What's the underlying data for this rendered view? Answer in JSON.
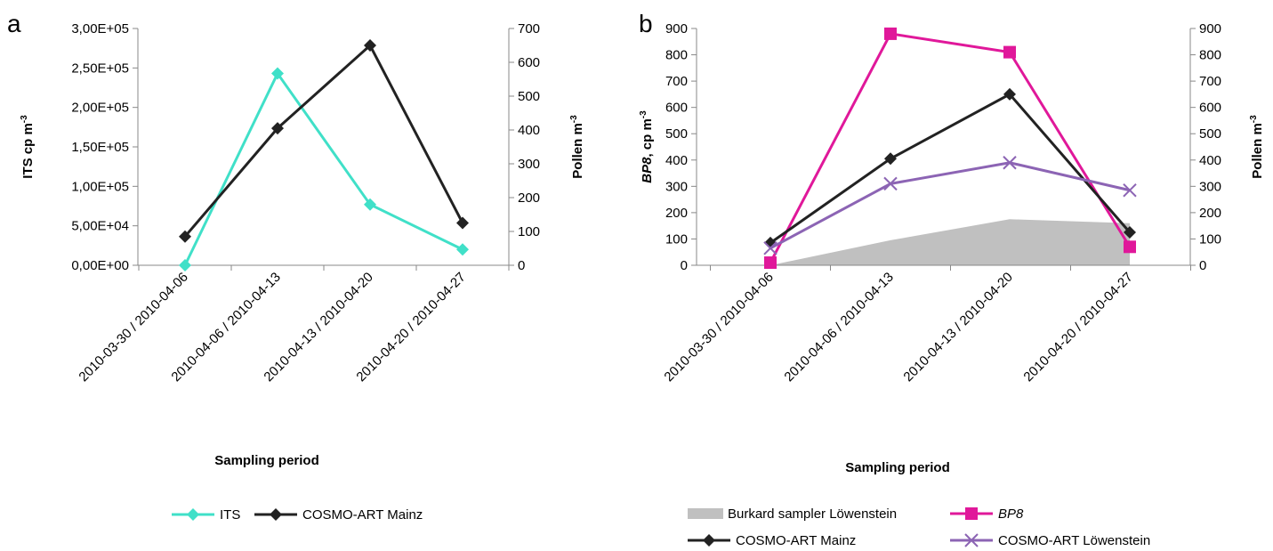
{
  "chart_data": [
    {
      "panel": "a",
      "type": "line",
      "categories": [
        "2010-03-30 / 2010-04-06",
        "2010-04-06 / 2010-04-13",
        "2010-04-13 / 2010-04-20",
        "2010-04-20 / 2010-04-27"
      ],
      "xlabel": "Sampling period",
      "ylabel": "ITS cp m",
      "ylabel_sup": "-3",
      "y2label": "Pollen m",
      "y2label_sup": "-3",
      "ylim": [
        0,
        300000
      ],
      "yticks": [
        "0,00E+00",
        "5,00E+04",
        "1,00E+05",
        "1,50E+05",
        "2,00E+05",
        "2,50E+05",
        "3,00E+05"
      ],
      "y2lim": [
        0,
        700
      ],
      "y2ticks": [
        "0",
        "100",
        "200",
        "300",
        "400",
        "500",
        "600",
        "700"
      ],
      "legend_position": "bottom",
      "series": [
        {
          "name": "ITS",
          "axis": "left",
          "color": "#40e0c8",
          "marker": "diamond",
          "values": [
            0,
            243000,
            77000,
            20000
          ]
        },
        {
          "name": "COSMO-ART Mainz",
          "axis": "right",
          "color": "#222222",
          "marker": "diamond",
          "values": [
            85,
            405,
            650,
            125
          ]
        }
      ]
    },
    {
      "panel": "b",
      "type": "line",
      "categories": [
        "2010-03-30 / 2010-04-06",
        "2010-04-06 / 2010-04-13",
        "2010-04-13 / 2010-04-20",
        "2010-04-20 / 2010-04-27"
      ],
      "xlabel": "Sampling period",
      "ylabel_italic": "BP8",
      "ylabel": ", cp m",
      "ylabel_sup": "-3",
      "y2label": "Pollen m",
      "y2label_sup": "-3",
      "ylim": [
        0,
        900
      ],
      "yticks": [
        "0",
        "100",
        "200",
        "300",
        "400",
        "500",
        "600",
        "700",
        "800",
        "900"
      ],
      "y2lim": [
        0,
        900
      ],
      "y2ticks": [
        "0",
        "100",
        "200",
        "300",
        "400",
        "500",
        "600",
        "700",
        "800",
        "900"
      ],
      "legend_position": "bottom",
      "area": {
        "name": "Burkard sampler Löwenstein",
        "axis": "right",
        "color": "#c0c0c0",
        "values": [
          0,
          95,
          175,
          160
        ]
      },
      "series": [
        {
          "name": "BP8",
          "italic": true,
          "axis": "left",
          "color": "#e0189a",
          "marker": "square",
          "values": [
            10,
            880,
            810,
            70
          ]
        },
        {
          "name": "COSMO-ART Mainz",
          "axis": "right",
          "color": "#222222",
          "marker": "diamond",
          "values": [
            85,
            405,
            650,
            125
          ]
        },
        {
          "name": "COSMO-ART Löwenstein",
          "axis": "right",
          "color": "#8c64b4",
          "marker": "x",
          "values": [
            65,
            310,
            390,
            285
          ]
        }
      ]
    }
  ]
}
